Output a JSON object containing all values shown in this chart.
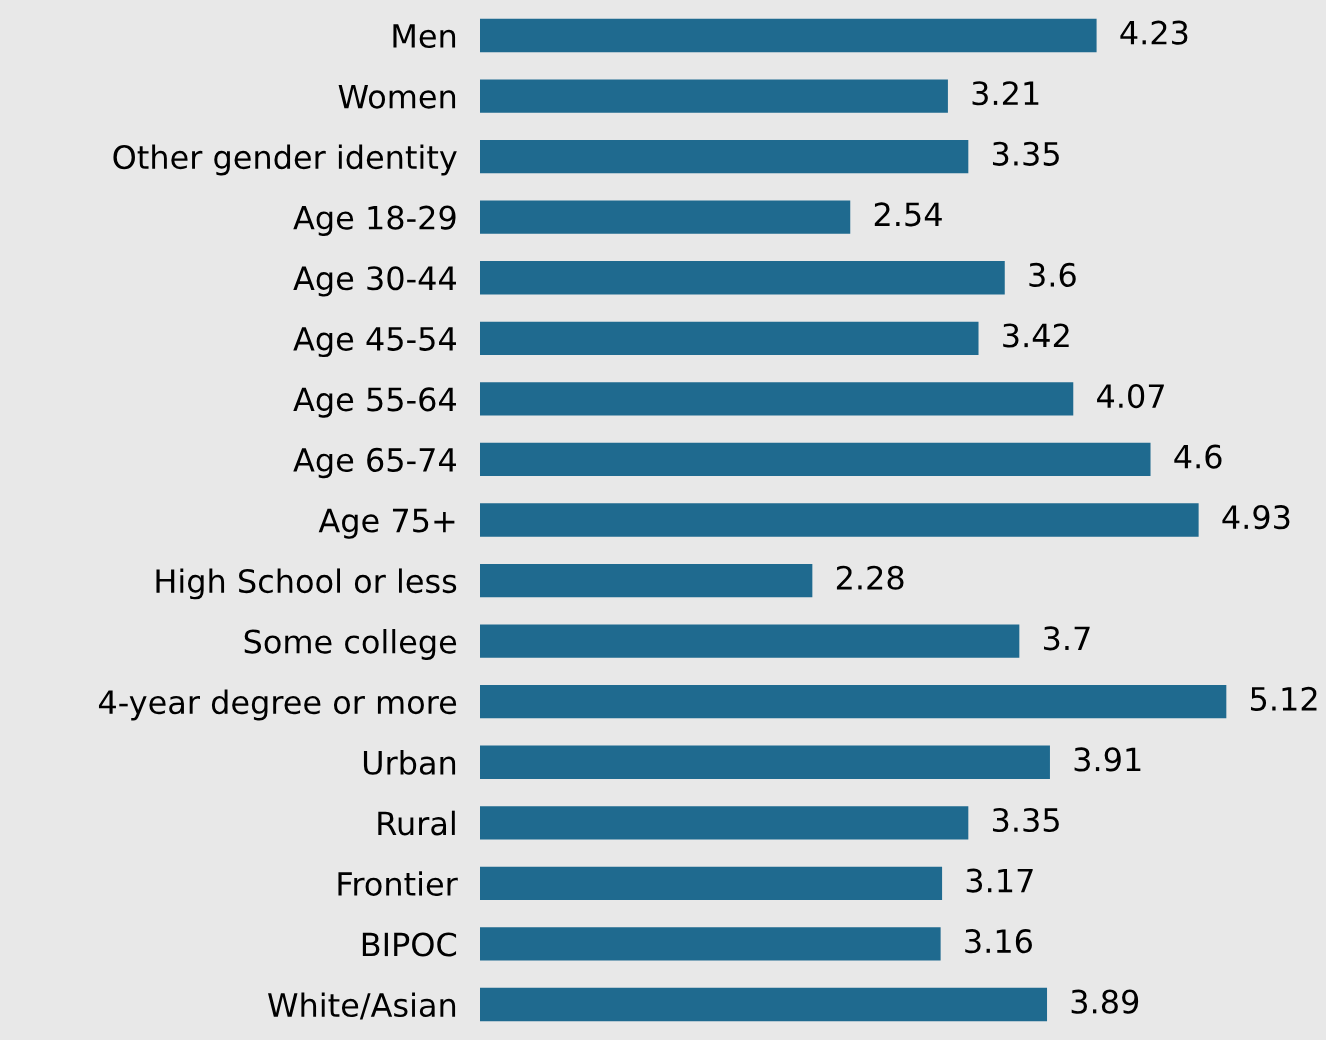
{
  "chart_data": {
    "type": "bar",
    "orientation": "horizontal",
    "categories": [
      "Men",
      "Women",
      "Other gender identity",
      "Age 18-29",
      "Age 30-44",
      "Age 45-54",
      "Age 55-64",
      "Age 65-74",
      "Age 75+",
      "High School or less",
      "Some college",
      "4-year degree or more",
      "Urban",
      "Rural",
      "Frontier",
      "BIPOC",
      "White/Asian"
    ],
    "values": [
      4.23,
      3.21,
      3.35,
      2.54,
      3.6,
      3.42,
      4.07,
      4.6,
      4.93,
      2.28,
      3.7,
      5.12,
      3.91,
      3.35,
      3.17,
      3.16,
      3.89
    ],
    "color": "#1f6a8f",
    "data_labels": true,
    "grid": false,
    "legend": false
  }
}
